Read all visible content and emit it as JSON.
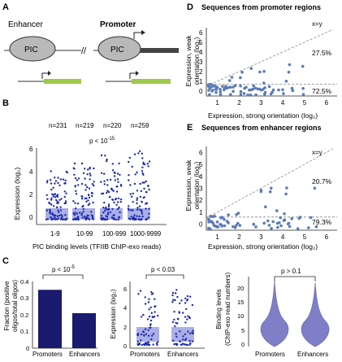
{
  "panelA": {
    "letter": "A",
    "enhancer_label": "Enhancer",
    "promoter_label": "Promoter",
    "pic_label": "PIC",
    "break_mark": "//"
  },
  "panelB": {
    "letter": "B",
    "counts": [
      "n=231",
      "n=219",
      "n=220",
      "n=259"
    ],
    "pvalue": "p < 10",
    "pvalue_exp": "-15",
    "ylabel": "Expression (log₂)",
    "xlabel": "PIC binding levels (TFIIB ChIP-exo reads)",
    "categories": [
      "1-9",
      "10-99",
      "100-999",
      "1000-9999"
    ],
    "yticks": [
      "0",
      "2",
      "4",
      "6"
    ]
  },
  "panelC": {
    "letter": "C",
    "bar": {
      "ylabel_line1": "Fraction (positive",
      "ylabel_line2": "oligos/total oligos)",
      "pvalue": "p < 10",
      "pvalue_exp": "-5",
      "categories": [
        "Promoters",
        "Enhancers"
      ],
      "yticks": [
        "0",
        "0.1",
        "0.2",
        "0.3",
        "0.4"
      ]
    },
    "strip": {
      "ylabel": "Expression (log₂)",
      "pvalue": "p < 0.03",
      "categories": [
        "Promoters",
        "Enhancers"
      ],
      "yticks": [
        "0",
        "2",
        "4",
        "6"
      ]
    },
    "violin": {
      "ylabel_line1": "Binding levels",
      "ylabel_line2": "(ChIP-exo read numbers)",
      "pvalue": "p > 0.1",
      "categories": [
        "Promoters",
        "Enhancers"
      ],
      "yticks": [
        "0",
        "5",
        "10",
        "15",
        "20"
      ]
    }
  },
  "panelD": {
    "letter": "D",
    "title": "Sequences from promoter regions",
    "xlabel": "Expression, strong orientation (log₂)",
    "ylabel_line1": "Expression, weak",
    "ylabel_line2": "orientation (log₂)",
    "xy_label": "x=y",
    "upper_pct": "27.5%",
    "lower_pct": "72.5%",
    "xticks": [
      "1",
      "2",
      "3",
      "4",
      "5",
      "6"
    ],
    "yticks": [
      "0",
      "1",
      "2",
      "3",
      "4",
      "5",
      "6"
    ]
  },
  "panelE": {
    "letter": "E",
    "title": "Sequences from enhancer regions",
    "xlabel": "Expression, strong orientation (log₂)",
    "ylabel_line1": "Expression, weak",
    "ylabel_line2": "orientation (log₂)",
    "xy_label": "x=y",
    "upper_pct": "20.7%",
    "lower_pct": "79.3%",
    "xticks": [
      "1",
      "2",
      "3",
      "4",
      "5",
      "6"
    ],
    "yticks": [
      "0",
      "1",
      "2",
      "3",
      "4",
      "5",
      "6"
    ]
  },
  "chart_data": [
    {
      "type": "bar",
      "panel": "C-left",
      "categories": [
        "Promoters",
        "Enhancers"
      ],
      "values": [
        0.35,
        0.21
      ],
      "ylim": [
        0,
        0.4
      ],
      "colors": [
        "#1a1a6e",
        "#1a1a6e"
      ]
    },
    {
      "type": "scatter",
      "panel": "D",
      "xlim": [
        0.5,
        6.5
      ],
      "ylim": [
        -0.5,
        6.5
      ],
      "threshold_y": 0.7,
      "marker_color": "#5b7bb8"
    },
    {
      "type": "scatter",
      "panel": "E",
      "xlim": [
        0.5,
        6.5
      ],
      "ylim": [
        -0.5,
        6.5
      ],
      "threshold_y": 0.6,
      "marker_color": "#5b7bb8"
    }
  ]
}
